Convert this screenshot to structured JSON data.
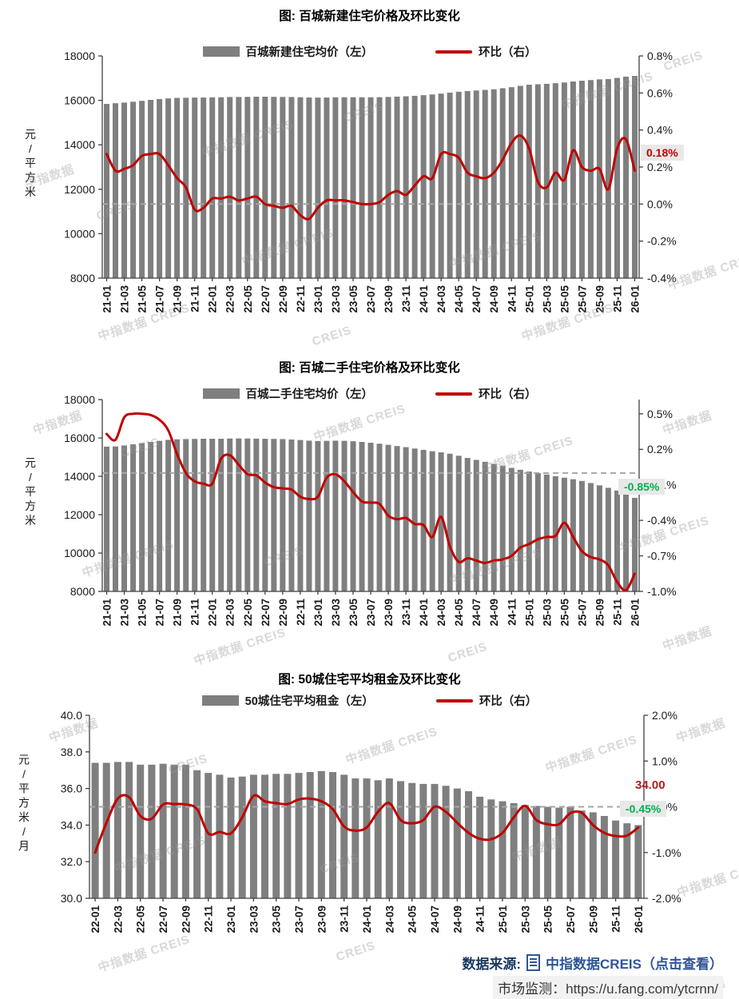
{
  "colors": {
    "bar": "#7f7f7f",
    "line": "#c00000",
    "dashed": "#a6a6a6",
    "axis": "#404040",
    "accent_green": "#00b050",
    "accent_red": "#c00000",
    "footer_navy": "#17375e",
    "footer_blue": "#2e5596"
  },
  "watermark": {
    "texts": [
      "中指数据 CREIS",
      "CREIS",
      "中指数据"
    ]
  },
  "footer": {
    "source_label": "数据来源:",
    "source_link": "中指数据CREIS（点击查看）",
    "monitor_label": "市场监测：",
    "monitor_url": "https://u.fang.com/ytcrnn/"
  },
  "chart_data": [
    {
      "type": "bar+line",
      "title": "图: 百城新建住宅价格及环比变化",
      "ylabel_left": "元/平方米",
      "legend_position": "top",
      "grid": false,
      "x_tick_labels": [
        "21-01",
        "21-03",
        "21-05",
        "21-07",
        "21-09",
        "21-11",
        "22-01",
        "22-03",
        "22-05",
        "22-07",
        "22-09",
        "22-11",
        "23-01",
        "23-03",
        "23-05",
        "23-07",
        "23-09",
        "23-11",
        "24-01",
        "24-03",
        "24-05",
        "24-07",
        "24-09",
        "24-11",
        "25-01",
        "25-03",
        "25-05",
        "25-07",
        "25-09",
        "25-11",
        "26-01"
      ],
      "categories": [
        "21-01",
        "21-02",
        "21-03",
        "21-04",
        "21-05",
        "21-06",
        "21-07",
        "21-08",
        "21-09",
        "21-10",
        "21-11",
        "21-12",
        "22-01",
        "22-02",
        "22-03",
        "22-04",
        "22-05",
        "22-06",
        "22-07",
        "22-08",
        "22-09",
        "22-10",
        "22-11",
        "22-12",
        "23-01",
        "23-02",
        "23-03",
        "23-04",
        "23-05",
        "23-06",
        "23-07",
        "23-08",
        "23-09",
        "23-10",
        "23-11",
        "23-12",
        "24-01",
        "24-02",
        "24-03",
        "24-04",
        "24-05",
        "24-06",
        "24-07",
        "24-08",
        "24-09",
        "24-10",
        "24-11",
        "24-12",
        "25-01",
        "25-02",
        "25-03",
        "25-04",
        "25-05",
        "25-06",
        "25-07",
        "25-08",
        "25-09",
        "25-10",
        "25-11",
        "25-12",
        "26-01"
      ],
      "series": [
        {
          "name": "百城新建住宅均价（左）",
          "type": "bar",
          "axis": "left",
          "values": [
            15840,
            15870,
            15900,
            15940,
            15980,
            16020,
            16060,
            16090,
            16110,
            16120,
            16125,
            16130,
            16135,
            16140,
            16150,
            16155,
            16160,
            16165,
            16165,
            16160,
            16155,
            16150,
            16140,
            16130,
            16125,
            16130,
            16135,
            16140,
            16140,
            16140,
            16140,
            16145,
            16155,
            16170,
            16185,
            16205,
            16235,
            16265,
            16305,
            16350,
            16390,
            16420,
            16445,
            16470,
            16500,
            16545,
            16595,
            16655,
            16705,
            16725,
            16745,
            16775,
            16805,
            16850,
            16885,
            16915,
            16945,
            16960,
            17010,
            17070,
            17100
          ]
        },
        {
          "name": "环比（右）",
          "type": "line",
          "axis": "right",
          "values": [
            0.27,
            0.18,
            0.19,
            0.21,
            0.26,
            0.27,
            0.27,
            0.21,
            0.14,
            0.09,
            -0.03,
            -0.02,
            0.03,
            0.03,
            0.04,
            0.02,
            0.03,
            0.04,
            0.0,
            -0.01,
            -0.02,
            -0.01,
            -0.06,
            -0.08,
            -0.02,
            0.02,
            0.02,
            0.02,
            0.01,
            0.0,
            0.0,
            0.01,
            0.05,
            0.07,
            0.05,
            0.1,
            0.15,
            0.14,
            0.27,
            0.27,
            0.25,
            0.17,
            0.15,
            0.14,
            0.17,
            0.24,
            0.33,
            0.37,
            0.3,
            0.12,
            0.09,
            0.17,
            0.13,
            0.29,
            0.2,
            0.18,
            0.19,
            0.08,
            0.3,
            0.35,
            0.18
          ]
        }
      ],
      "left_axis": {
        "min": 8000,
        "max": 18000,
        "tick_values": [
          18000,
          16000,
          14000,
          12000,
          10000,
          8000
        ],
        "tick_labels": [
          "18000",
          "16000",
          "14000",
          "12000",
          "10000",
          "8000"
        ]
      },
      "right_axis": {
        "min": -0.4,
        "max": 0.8,
        "tick_values": [
          0.8,
          0.6,
          0.4,
          0.2,
          0.0,
          -0.2,
          -0.4
        ],
        "tick_labels": [
          "0.8%",
          "0.6%",
          "0.4%",
          "0.2%",
          "0.0%",
          "-0.2%",
          "-0.4%"
        ],
        "zero_dashed": true
      },
      "annotations": [
        {
          "text": "0.18%",
          "color": "#c00000",
          "background": "#e8e8e8"
        }
      ]
    },
    {
      "type": "bar+line",
      "title": "图: 百城二手住宅价格及环比变化",
      "ylabel_left": "元/平方米",
      "legend_position": "top",
      "grid": false,
      "x_tick_labels": [
        "21-01",
        "21-03",
        "21-05",
        "21-07",
        "21-09",
        "21-11",
        "22-01",
        "22-03",
        "22-05",
        "22-07",
        "22-09",
        "22-11",
        "23-01",
        "23-03",
        "23-05",
        "23-07",
        "23-09",
        "23-11",
        "24-01",
        "24-03",
        "24-05",
        "24-07",
        "24-09",
        "24-11",
        "25-01",
        "25-03",
        "25-05",
        "25-07",
        "25-09",
        "25-11",
        "26-01"
      ],
      "categories": [
        "21-01",
        "21-02",
        "21-03",
        "21-04",
        "21-05",
        "21-06",
        "21-07",
        "21-08",
        "21-09",
        "21-10",
        "21-11",
        "21-12",
        "22-01",
        "22-02",
        "22-03",
        "22-04",
        "22-05",
        "22-06",
        "22-07",
        "22-08",
        "22-09",
        "22-10",
        "22-11",
        "22-12",
        "23-01",
        "23-02",
        "23-03",
        "23-04",
        "23-05",
        "23-06",
        "23-07",
        "23-08",
        "23-09",
        "23-10",
        "23-11",
        "23-12",
        "24-01",
        "24-02",
        "24-03",
        "24-04",
        "24-05",
        "24-06",
        "24-07",
        "24-08",
        "24-09",
        "24-10",
        "24-11",
        "24-12",
        "25-01",
        "25-02",
        "25-03",
        "25-04",
        "25-05",
        "25-06",
        "25-07",
        "25-08",
        "25-09",
        "25-10",
        "25-11",
        "25-12",
        "26-01"
      ],
      "series": [
        {
          "name": "百城二手住宅均价（左）",
          "type": "bar",
          "axis": "left",
          "values": [
            15550,
            15560,
            15610,
            15670,
            15730,
            15790,
            15850,
            15900,
            15930,
            15940,
            15950,
            15960,
            15960,
            15960,
            15970,
            15975,
            15970,
            15965,
            15960,
            15950,
            15940,
            15920,
            15890,
            15860,
            15840,
            15850,
            15860,
            15850,
            15830,
            15790,
            15750,
            15700,
            15640,
            15580,
            15520,
            15450,
            15380,
            15310,
            15250,
            15180,
            15070,
            14960,
            14860,
            14760,
            14650,
            14550,
            14440,
            14340,
            14250,
            14170,
            14090,
            14010,
            13930,
            13850,
            13760,
            13650,
            13530,
            13400,
            13260,
            13100,
            12880
          ]
        },
        {
          "name": "环比（右）",
          "type": "line",
          "axis": "right",
          "values": [
            0.33,
            0.28,
            0.47,
            0.5,
            0.5,
            0.49,
            0.45,
            0.36,
            0.16,
            0.0,
            -0.07,
            -0.09,
            -0.09,
            0.12,
            0.15,
            0.07,
            -0.01,
            -0.02,
            -0.08,
            -0.12,
            -0.13,
            -0.14,
            -0.2,
            -0.22,
            -0.2,
            -0.04,
            -0.01,
            -0.07,
            -0.16,
            -0.24,
            -0.25,
            -0.26,
            -0.36,
            -0.39,
            -0.38,
            -0.43,
            -0.44,
            -0.54,
            -0.37,
            -0.62,
            -0.75,
            -0.72,
            -0.74,
            -0.76,
            -0.74,
            -0.73,
            -0.7,
            -0.63,
            -0.6,
            -0.56,
            -0.54,
            -0.53,
            -0.42,
            -0.54,
            -0.66,
            -0.71,
            -0.73,
            -0.78,
            -0.92,
            -0.99,
            -0.85
          ]
        }
      ],
      "left_axis": {
        "min": 8000,
        "max": 18000,
        "tick_values": [
          18000,
          16000,
          14000,
          12000,
          10000,
          8000
        ],
        "tick_labels": [
          "18000",
          "16000",
          "14000",
          "12000",
          "10000",
          "8000"
        ]
      },
      "right_axis": {
        "min": -1.0,
        "max": 0.62,
        "tick_values": [
          0.5,
          0.2,
          -0.1,
          -0.4,
          -0.7,
          -1.0
        ],
        "tick_labels": [
          "0.5%",
          "0.2%",
          "-0.1%",
          "-0.4%",
          "-0.7%",
          "-1.0%"
        ],
        "zero_dashed": true
      },
      "annotations": [
        {
          "text": "-0.85%",
          "color": "#00b050",
          "background": "#e8e8e8"
        }
      ]
    },
    {
      "type": "bar+line",
      "title": "图: 50城住宅平均租金及环比变化",
      "ylabel_left": "元/平方米/月",
      "legend_position": "top",
      "grid": false,
      "x_tick_labels": [
        "22-01",
        "22-03",
        "22-05",
        "22-07",
        "22-09",
        "22-11",
        "23-01",
        "23-03",
        "23-05",
        "23-07",
        "23-09",
        "23-11",
        "24-01",
        "24-03",
        "24-05",
        "24-07",
        "24-09",
        "24-11",
        "25-01",
        "25-03",
        "25-05",
        "25-07",
        "25-09",
        "25-11",
        "26-01"
      ],
      "categories": [
        "22-01",
        "22-02",
        "22-03",
        "22-04",
        "22-05",
        "22-06",
        "22-07",
        "22-08",
        "22-09",
        "22-10",
        "22-11",
        "22-12",
        "23-01",
        "23-02",
        "23-03",
        "23-04",
        "23-05",
        "23-06",
        "23-07",
        "23-08",
        "23-09",
        "23-10",
        "23-11",
        "23-12",
        "24-01",
        "24-02",
        "24-03",
        "24-04",
        "24-05",
        "24-06",
        "24-07",
        "24-08",
        "24-09",
        "24-10",
        "24-11",
        "24-12",
        "25-01",
        "25-02",
        "25-03",
        "25-04",
        "25-05",
        "25-06",
        "25-07",
        "25-08",
        "25-09",
        "25-10",
        "25-11",
        "25-12",
        "26-01"
      ],
      "series": [
        {
          "name": "50城住宅平均租金（左）",
          "type": "bar",
          "axis": "left",
          "values": [
            37.4,
            37.4,
            37.45,
            37.45,
            37.3,
            37.3,
            37.35,
            37.3,
            37.3,
            37.0,
            36.85,
            36.75,
            36.6,
            36.65,
            36.75,
            36.75,
            36.8,
            36.8,
            36.85,
            36.9,
            36.95,
            36.9,
            36.75,
            36.55,
            36.55,
            36.45,
            36.55,
            36.4,
            36.3,
            36.25,
            36.25,
            36.15,
            36.0,
            35.85,
            35.55,
            35.4,
            35.3,
            35.2,
            35.1,
            35.05,
            35.0,
            34.95,
            35.0,
            34.8,
            34.7,
            34.5,
            34.25,
            34.1,
            34.0
          ]
        },
        {
          "name": "环比（右）",
          "type": "line",
          "axis": "right",
          "values": [
            -1.0,
            -0.35,
            0.18,
            0.21,
            -0.2,
            -0.26,
            0.05,
            0.06,
            0.05,
            -0.05,
            -0.58,
            -0.55,
            -0.58,
            -0.23,
            0.24,
            0.12,
            0.08,
            0.06,
            0.16,
            0.18,
            0.12,
            -0.05,
            -0.43,
            -0.52,
            -0.45,
            -0.11,
            0.08,
            -0.29,
            -0.36,
            -0.29,
            0.0,
            -0.11,
            -0.35,
            -0.57,
            -0.7,
            -0.71,
            -0.57,
            -0.23,
            0.02,
            -0.29,
            -0.38,
            -0.38,
            -0.14,
            -0.13,
            -0.4,
            -0.57,
            -0.64,
            -0.63,
            -0.45
          ]
        }
      ],
      "left_axis": {
        "min": 30,
        "max": 40,
        "tick_values": [
          40,
          38,
          36,
          34,
          32,
          30
        ],
        "tick_labels": [
          "40.0",
          "38.0",
          "36.0",
          "34.0",
          "32.0",
          "30.0"
        ]
      },
      "right_axis": {
        "min": -2.0,
        "max": 2.0,
        "tick_values": [
          2.0,
          1.0,
          0.0,
          -1.0,
          -2.0
        ],
        "tick_labels": [
          "2.0%",
          "1.0%",
          "0.0%",
          "-1.0%",
          "-2.0%"
        ],
        "zero_dashed": true
      },
      "annotations": [
        {
          "text": "34.00",
          "color": "#b02020",
          "background": "none"
        },
        {
          "text": "-0.45%",
          "color": "#00b050",
          "background": "#e8e8e8"
        }
      ]
    }
  ]
}
